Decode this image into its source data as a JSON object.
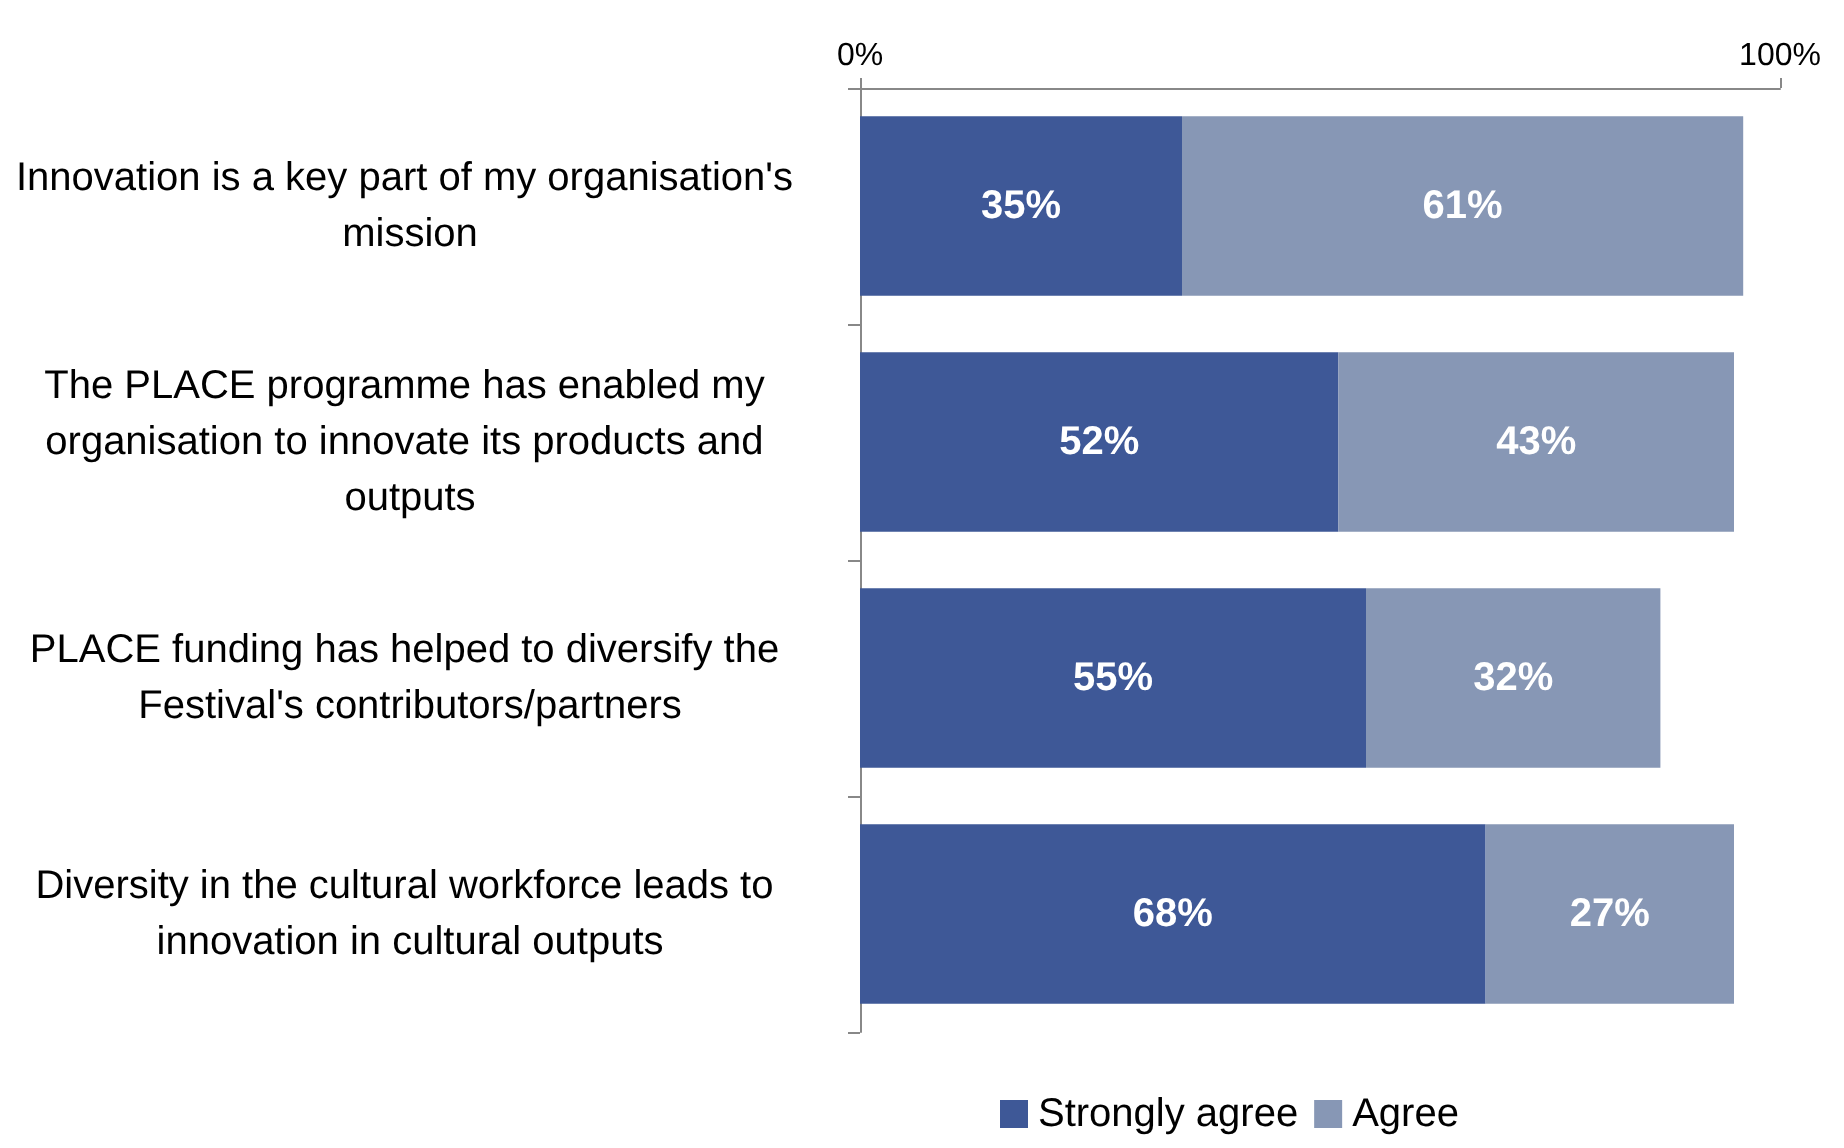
{
  "chart_data": {
    "type": "bar",
    "orientation": "horizontal",
    "stacked": true,
    "categories": [
      "Innovation is a key part of my organisation's mission",
      "The PLACE programme has enabled my organisation to innovate its products and outputs",
      "PLACE funding has helped to diversify the Festival's contributors/partners",
      "Diversity in the cultural workforce leads to innovation in cultural outputs"
    ],
    "series": [
      {
        "name": "Strongly agree",
        "color": "#3e5897",
        "values": [
          35,
          52,
          55,
          68
        ],
        "value_labels": [
          "35%",
          "52%",
          "55%",
          "68%"
        ]
      },
      {
        "name": "Agree",
        "color": "#8797b5",
        "values": [
          61,
          43,
          32,
          27
        ],
        "value_labels": [
          "61%",
          "43%",
          "32%",
          "27%"
        ]
      }
    ],
    "xlim": [
      0,
      100
    ],
    "xticks": [
      {
        "value": 0,
        "label": "0%"
      },
      {
        "value": 100,
        "label": "100%"
      }
    ],
    "grid": false,
    "legend": "bottom"
  }
}
